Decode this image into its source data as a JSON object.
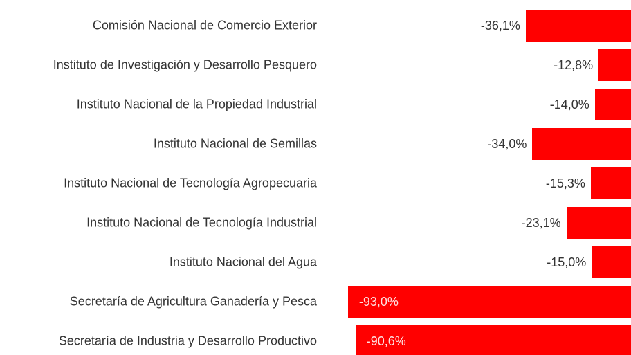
{
  "chart_data": {
    "type": "bar",
    "orientation": "horizontal",
    "color": "#ff0000",
    "categories": [
      "Comisión Nacional de Comercio Exterior",
      "Instituto de Investigación y Desarrollo Pesquero",
      "Instituto Nacional de la Propiedad Industrial",
      "Instituto Nacional de Semillas",
      "Instituto Nacional de Tecnología Agropecuaria",
      "Instituto Nacional de Tecnología Industrial",
      "Instituto Nacional del Agua",
      "Secretaría de Agricultura Ganadería y Pesca",
      "Secretaría de Industria y Desarrollo Productivo"
    ],
    "values": [
      -36.1,
      -12.8,
      -14.0,
      -34.0,
      -15.3,
      -23.1,
      -15.0,
      -93.0,
      -90.6
    ],
    "value_labels": [
      "-36,1%",
      "-12,8%",
      "-14,0%",
      "-34,0%",
      "-15,3%",
      "-23,1%",
      "-15,0%",
      "-93,0%",
      "-90,6%"
    ]
  }
}
